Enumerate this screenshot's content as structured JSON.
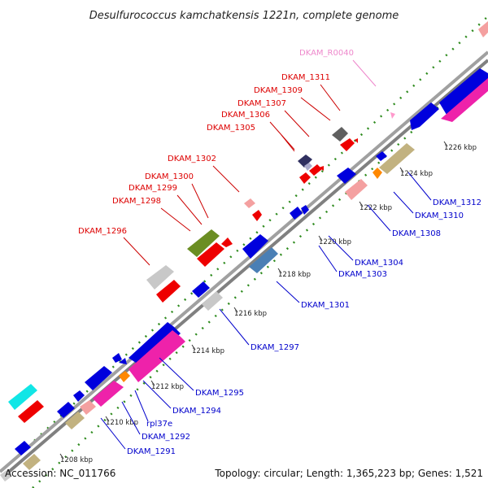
{
  "title": "Desulfurococcus kamchatkensis 1221n, complete genome",
  "footer": {
    "accession": "Accession: NC_011766",
    "summary": "Topology: circular; Length: 1,365,223 bp; Genes: 1,521"
  },
  "colors": {
    "backbone": "#909090",
    "dots": "#2e8b1e",
    "label_red": "#dd0000",
    "label_blue": "#0000cc",
    "label_pink": "#ee88cc",
    "leader_red": "#cc0000",
    "leader_blue": "#0000cc",
    "leader_pink": "#ee88cc"
  },
  "ticks": [
    {
      "label": "1208 kbp"
    },
    {
      "label": "1210 kbp"
    },
    {
      "label": "1212 kbp"
    },
    {
      "label": "1214 kbp"
    },
    {
      "label": "1216 kbp"
    },
    {
      "label": "1218 kbp"
    },
    {
      "label": "1220 kbp"
    },
    {
      "label": "1222 kbp"
    },
    {
      "label": "1224 kbp"
    },
    {
      "label": "1226 kbp"
    }
  ],
  "labels_top": [
    {
      "text": "DKAM_R0040",
      "color": "pink"
    },
    {
      "text": "DKAM_1311",
      "color": "red"
    },
    {
      "text": "DKAM_1309",
      "color": "red"
    },
    {
      "text": "DKAM_1307",
      "color": "red"
    },
    {
      "text": "DKAM_1306",
      "color": "red"
    },
    {
      "text": "DKAM_1305",
      "color": "red"
    },
    {
      "text": "DKAM_1302",
      "color": "red"
    },
    {
      "text": "DKAM_1300",
      "color": "red"
    },
    {
      "text": "DKAM_1299",
      "color": "red"
    },
    {
      "text": "DKAM_1298",
      "color": "red"
    },
    {
      "text": "DKAM_1296",
      "color": "red"
    }
  ],
  "labels_bottom": [
    {
      "text": "DKAM_1312"
    },
    {
      "text": "DKAM_1310"
    },
    {
      "text": "DKAM_1308"
    },
    {
      "text": "DKAM_1304"
    },
    {
      "text": "DKAM_1303"
    },
    {
      "text": "DKAM_1301"
    },
    {
      "text": "DKAM_1297"
    },
    {
      "text": "DKAM_1295"
    },
    {
      "text": "DKAM_1294"
    },
    {
      "text": "rpl37e"
    },
    {
      "text": "DKAM_1292"
    },
    {
      "text": "DKAM_1291"
    }
  ]
}
